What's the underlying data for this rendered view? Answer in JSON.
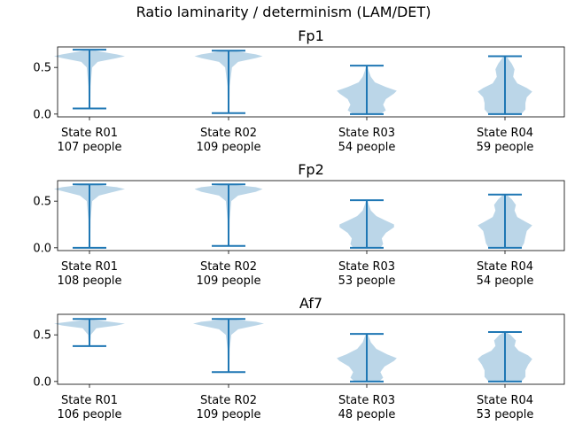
{
  "figure": {
    "suptitle": "Ratio laminarity / determinism (LAM/DET)",
    "colors": {
      "violin_fill": "#1f77b4",
      "violin_fill_opacity": 0.3,
      "line": "#1f77b4",
      "axes": "#000000"
    }
  },
  "chart_data": [
    {
      "type": "violin",
      "title": "Fp1",
      "xlabel": "",
      "ylabel": "",
      "ylim": [
        -0.03,
        0.72
      ],
      "yticks": [
        0.0,
        0.5
      ],
      "ytick_labels": [
        "0.0",
        "0.5"
      ],
      "grid": false,
      "categories": [
        {
          "label": "State R01",
          "count_label": "107 people",
          "min": 0.06,
          "max": 0.69,
          "profile": [
            [
              0.06,
              0.005
            ],
            [
              0.3,
              0.008
            ],
            [
              0.5,
              0.02
            ],
            [
              0.56,
              0.06
            ],
            [
              0.6,
              0.2
            ],
            [
              0.62,
              0.26
            ],
            [
              0.64,
              0.2
            ],
            [
              0.67,
              0.08
            ],
            [
              0.69,
              0.02
            ]
          ]
        },
        {
          "label": "State R02",
          "count_label": "109 people",
          "min": 0.01,
          "max": 0.68,
          "profile": [
            [
              0.01,
              0.005
            ],
            [
              0.3,
              0.008
            ],
            [
              0.5,
              0.025
            ],
            [
              0.56,
              0.07
            ],
            [
              0.6,
              0.2
            ],
            [
              0.62,
              0.25
            ],
            [
              0.64,
              0.2
            ],
            [
              0.67,
              0.07
            ],
            [
              0.68,
              0.02
            ]
          ]
        },
        {
          "label": "State R03",
          "count_label": "54 people",
          "min": 0.0,
          "max": 0.52,
          "profile": [
            [
              0.0,
              0.1
            ],
            [
              0.04,
              0.14
            ],
            [
              0.1,
              0.12
            ],
            [
              0.16,
              0.14
            ],
            [
              0.22,
              0.2
            ],
            [
              0.25,
              0.22
            ],
            [
              0.29,
              0.14
            ],
            [
              0.34,
              0.06
            ],
            [
              0.4,
              0.03
            ],
            [
              0.46,
              0.015
            ],
            [
              0.52,
              0.005
            ]
          ]
        },
        {
          "label": "State R04",
          "count_label": "59 people",
          "min": 0.0,
          "max": 0.62,
          "profile": [
            [
              0.0,
              0.12
            ],
            [
              0.05,
              0.15
            ],
            [
              0.12,
              0.15
            ],
            [
              0.18,
              0.16
            ],
            [
              0.24,
              0.2
            ],
            [
              0.28,
              0.16
            ],
            [
              0.33,
              0.09
            ],
            [
              0.4,
              0.06
            ],
            [
              0.48,
              0.07
            ],
            [
              0.54,
              0.05
            ],
            [
              0.6,
              0.02
            ],
            [
              0.62,
              0.005
            ]
          ]
        }
      ]
    },
    {
      "type": "violin",
      "title": "Fp2",
      "xlabel": "",
      "ylabel": "",
      "ylim": [
        -0.03,
        0.72
      ],
      "yticks": [
        0.0,
        0.5
      ],
      "ytick_labels": [
        "0.0",
        "0.5"
      ],
      "grid": false,
      "categories": [
        {
          "label": "State R01",
          "count_label": "108 people",
          "min": 0.0,
          "max": 0.68,
          "profile": [
            [
              0.0,
              0.005
            ],
            [
              0.3,
              0.008
            ],
            [
              0.5,
              0.02
            ],
            [
              0.56,
              0.07
            ],
            [
              0.6,
              0.18
            ],
            [
              0.63,
              0.26
            ],
            [
              0.65,
              0.2
            ],
            [
              0.67,
              0.08
            ],
            [
              0.68,
              0.02
            ]
          ]
        },
        {
          "label": "State R02",
          "count_label": "109 people",
          "min": 0.02,
          "max": 0.68,
          "profile": [
            [
              0.02,
              0.005
            ],
            [
              0.3,
              0.008
            ],
            [
              0.5,
              0.02
            ],
            [
              0.56,
              0.07
            ],
            [
              0.6,
              0.2
            ],
            [
              0.63,
              0.25
            ],
            [
              0.65,
              0.2
            ],
            [
              0.67,
              0.07
            ],
            [
              0.68,
              0.02
            ]
          ]
        },
        {
          "label": "State R03",
          "count_label": "53 people",
          "min": 0.0,
          "max": 0.51,
          "profile": [
            [
              0.0,
              0.1
            ],
            [
              0.04,
              0.12
            ],
            [
              0.1,
              0.11
            ],
            [
              0.16,
              0.14
            ],
            [
              0.22,
              0.2
            ],
            [
              0.25,
              0.2
            ],
            [
              0.29,
              0.14
            ],
            [
              0.34,
              0.07
            ],
            [
              0.4,
              0.03
            ],
            [
              0.46,
              0.015
            ],
            [
              0.51,
              0.005
            ]
          ]
        },
        {
          "label": "State R04",
          "count_label": "54 people",
          "min": 0.0,
          "max": 0.57,
          "profile": [
            [
              0.0,
              0.12
            ],
            [
              0.05,
              0.14
            ],
            [
              0.12,
              0.15
            ],
            [
              0.18,
              0.16
            ],
            [
              0.24,
              0.2
            ],
            [
              0.28,
              0.15
            ],
            [
              0.33,
              0.09
            ],
            [
              0.4,
              0.07
            ],
            [
              0.46,
              0.08
            ],
            [
              0.52,
              0.05
            ],
            [
              0.56,
              0.02
            ],
            [
              0.57,
              0.005
            ]
          ]
        }
      ]
    },
    {
      "type": "violin",
      "title": "Af7",
      "xlabel": "",
      "ylabel": "",
      "ylim": [
        -0.03,
        0.72
      ],
      "yticks": [
        0.0,
        0.5
      ],
      "ytick_labels": [
        "0.0",
        "0.5"
      ],
      "grid": false,
      "categories": [
        {
          "label": "State R01",
          "count_label": "106 people",
          "min": 0.38,
          "max": 0.67,
          "profile": [
            [
              0.38,
              0.005
            ],
            [
              0.5,
              0.01
            ],
            [
              0.57,
              0.05
            ],
            [
              0.6,
              0.2
            ],
            [
              0.62,
              0.26
            ],
            [
              0.64,
              0.15
            ],
            [
              0.66,
              0.04
            ],
            [
              0.67,
              0.01
            ]
          ]
        },
        {
          "label": "State R02",
          "count_label": "109 people",
          "min": 0.1,
          "max": 0.67,
          "profile": [
            [
              0.1,
              0.005
            ],
            [
              0.35,
              0.008
            ],
            [
              0.5,
              0.02
            ],
            [
              0.56,
              0.07
            ],
            [
              0.6,
              0.2
            ],
            [
              0.62,
              0.26
            ],
            [
              0.64,
              0.2
            ],
            [
              0.66,
              0.07
            ],
            [
              0.67,
              0.02
            ]
          ]
        },
        {
          "label": "State R03",
          "count_label": "48 people",
          "min": 0.0,
          "max": 0.51,
          "profile": [
            [
              0.0,
              0.09
            ],
            [
              0.04,
              0.12
            ],
            [
              0.1,
              0.1
            ],
            [
              0.16,
              0.13
            ],
            [
              0.22,
              0.2
            ],
            [
              0.25,
              0.22
            ],
            [
              0.29,
              0.15
            ],
            [
              0.35,
              0.07
            ],
            [
              0.42,
              0.03
            ],
            [
              0.48,
              0.015
            ],
            [
              0.51,
              0.005
            ]
          ]
        },
        {
          "label": "State R04",
          "count_label": "53 people",
          "min": 0.0,
          "max": 0.53,
          "profile": [
            [
              0.0,
              0.12
            ],
            [
              0.05,
              0.15
            ],
            [
              0.12,
              0.15
            ],
            [
              0.18,
              0.17
            ],
            [
              0.24,
              0.2
            ],
            [
              0.28,
              0.17
            ],
            [
              0.33,
              0.1
            ],
            [
              0.38,
              0.07
            ],
            [
              0.44,
              0.08
            ],
            [
              0.5,
              0.04
            ],
            [
              0.53,
              0.005
            ]
          ]
        }
      ]
    }
  ]
}
